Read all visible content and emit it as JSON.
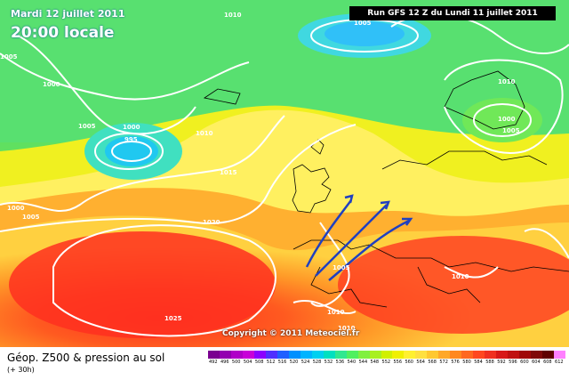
{
  "map": {
    "title_date": "Mardi 12 juillet 2011",
    "title_time": "20:00 locale",
    "run_info": "Run GFS 12 Z du Lundi 11 juillet 2011",
    "copyright": "Copyright © 2011 Meteociel.fr",
    "pressure_labels": [
      "1010",
      "1005",
      "1000",
      "1000",
      "995",
      "1005",
      "1010",
      "1015",
      "1020",
      "1025",
      "1005",
      "1000",
      "1005",
      "1010",
      "1005",
      "1000",
      "1005",
      "1010",
      "1010",
      "1010"
    ]
  },
  "legend": {
    "title": "Géop. Z500 & pression au sol",
    "subtitle": "(+ 30h)",
    "scale_values": [
      "492",
      "496",
      "500",
      "504",
      "508",
      "512",
      "516",
      "520",
      "524",
      "528",
      "532",
      "536",
      "540",
      "544",
      "548",
      "552",
      "556",
      "560",
      "564",
      "568",
      "572",
      "576",
      "580",
      "584",
      "588",
      "592",
      "596",
      "600",
      "604",
      "608",
      "612"
    ],
    "scale_colors": [
      "#7a0090",
      "#9300b0",
      "#b000c8",
      "#c800d8",
      "#8c00ff",
      "#5030ff",
      "#2060ff",
      "#0090ff",
      "#00b4ff",
      "#00d0f0",
      "#00e0c0",
      "#30e890",
      "#50f060",
      "#80f040",
      "#a8f020",
      "#d0f000",
      "#f0f000",
      "#fff030",
      "#ffe040",
      "#ffc830",
      "#ffa828",
      "#ff8820",
      "#ff6820",
      "#ff4820",
      "#f03020",
      "#d81818",
      "#c01010",
      "#a00808",
      "#800808",
      "#600000",
      "#ff80ff"
    ]
  }
}
